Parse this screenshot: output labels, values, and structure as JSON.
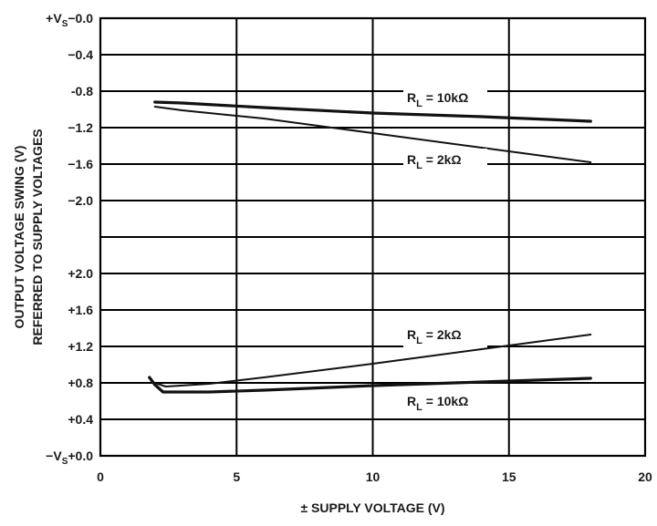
{
  "chart_data": {
    "type": "line",
    "xlabel": "± SUPPLY VOLTAGE (V)",
    "ylabel": "OUTPUT VOLTAGE SWING (V)",
    "ylabel2": "REFERRED TO SUPPLY VOLTAGES",
    "xlim": [
      0,
      20
    ],
    "x_ticks": [
      "0",
      "5",
      "10",
      "15",
      "20"
    ],
    "grid": true,
    "panels": [
      {
        "name": "upper",
        "reference": "+Vs",
        "ylim": [
          0.0,
          -2.4
        ],
        "y_ticks": [
          {
            "value": 0.0,
            "label": "+Vs−0.0"
          },
          {
            "value": -0.4,
            "label": "−0.4"
          },
          {
            "value": -0.8,
            "label": "-0.8"
          },
          {
            "value": -1.2,
            "label": "−1.2"
          },
          {
            "value": -1.6,
            "label": "−1.6"
          },
          {
            "value": -2.0,
            "label": "−2.0"
          },
          {
            "value": -2.4,
            "label": ""
          }
        ],
        "series": [
          {
            "name": "RL = 10kΩ",
            "label_main": "R",
            "label_sub": "L",
            "label_rest": " = 10kΩ",
            "x": [
              2,
              3,
              6,
              10,
              14,
              18
            ],
            "y": [
              -0.92,
              -0.93,
              -0.98,
              -1.04,
              -1.08,
              -1.13
            ],
            "stroke": 3.2
          },
          {
            "name": "RL = 2kΩ",
            "label_main": "R",
            "label_sub": "L",
            "label_rest": " = 2kΩ",
            "x": [
              2,
              3,
              6,
              10,
              14,
              18
            ],
            "y": [
              -0.97,
              -1.01,
              -1.1,
              -1.26,
              -1.42,
              -1.58
            ],
            "stroke": 2
          }
        ]
      },
      {
        "name": "lower",
        "reference": "−Vs",
        "ylim": [
          2.4,
          0.0
        ],
        "y_ticks": [
          {
            "value": 2.4,
            "label": ""
          },
          {
            "value": 2.0,
            "label": "+2.0"
          },
          {
            "value": 1.6,
            "label": "+1.6"
          },
          {
            "value": 1.2,
            "label": "+1.2"
          },
          {
            "value": 0.8,
            "label": "+0.8"
          },
          {
            "value": 0.4,
            "label": "+0.4"
          },
          {
            "value": 0.0,
            "label": "−Vs+0.0"
          }
        ],
        "series": [
          {
            "name": "RL = 2kΩ",
            "label_main": "R",
            "label_sub": "L",
            "label_rest": " = 2kΩ",
            "x": [
              2.1,
              2.4,
              4,
              6,
              10,
              14,
              18
            ],
            "y": [
              0.79,
              0.76,
              0.79,
              0.86,
              1.01,
              1.17,
              1.33
            ],
            "stroke": 2
          },
          {
            "name": "RL = 10kΩ",
            "label_main": "R",
            "label_sub": "L",
            "label_rest": " = 10kΩ",
            "x": [
              1.8,
              2.0,
              2.3,
              4,
              6,
              10,
              14,
              18
            ],
            "y": [
              0.86,
              0.78,
              0.7,
              0.7,
              0.72,
              0.77,
              0.81,
              0.85
            ],
            "stroke": 3.2
          }
        ]
      }
    ]
  }
}
